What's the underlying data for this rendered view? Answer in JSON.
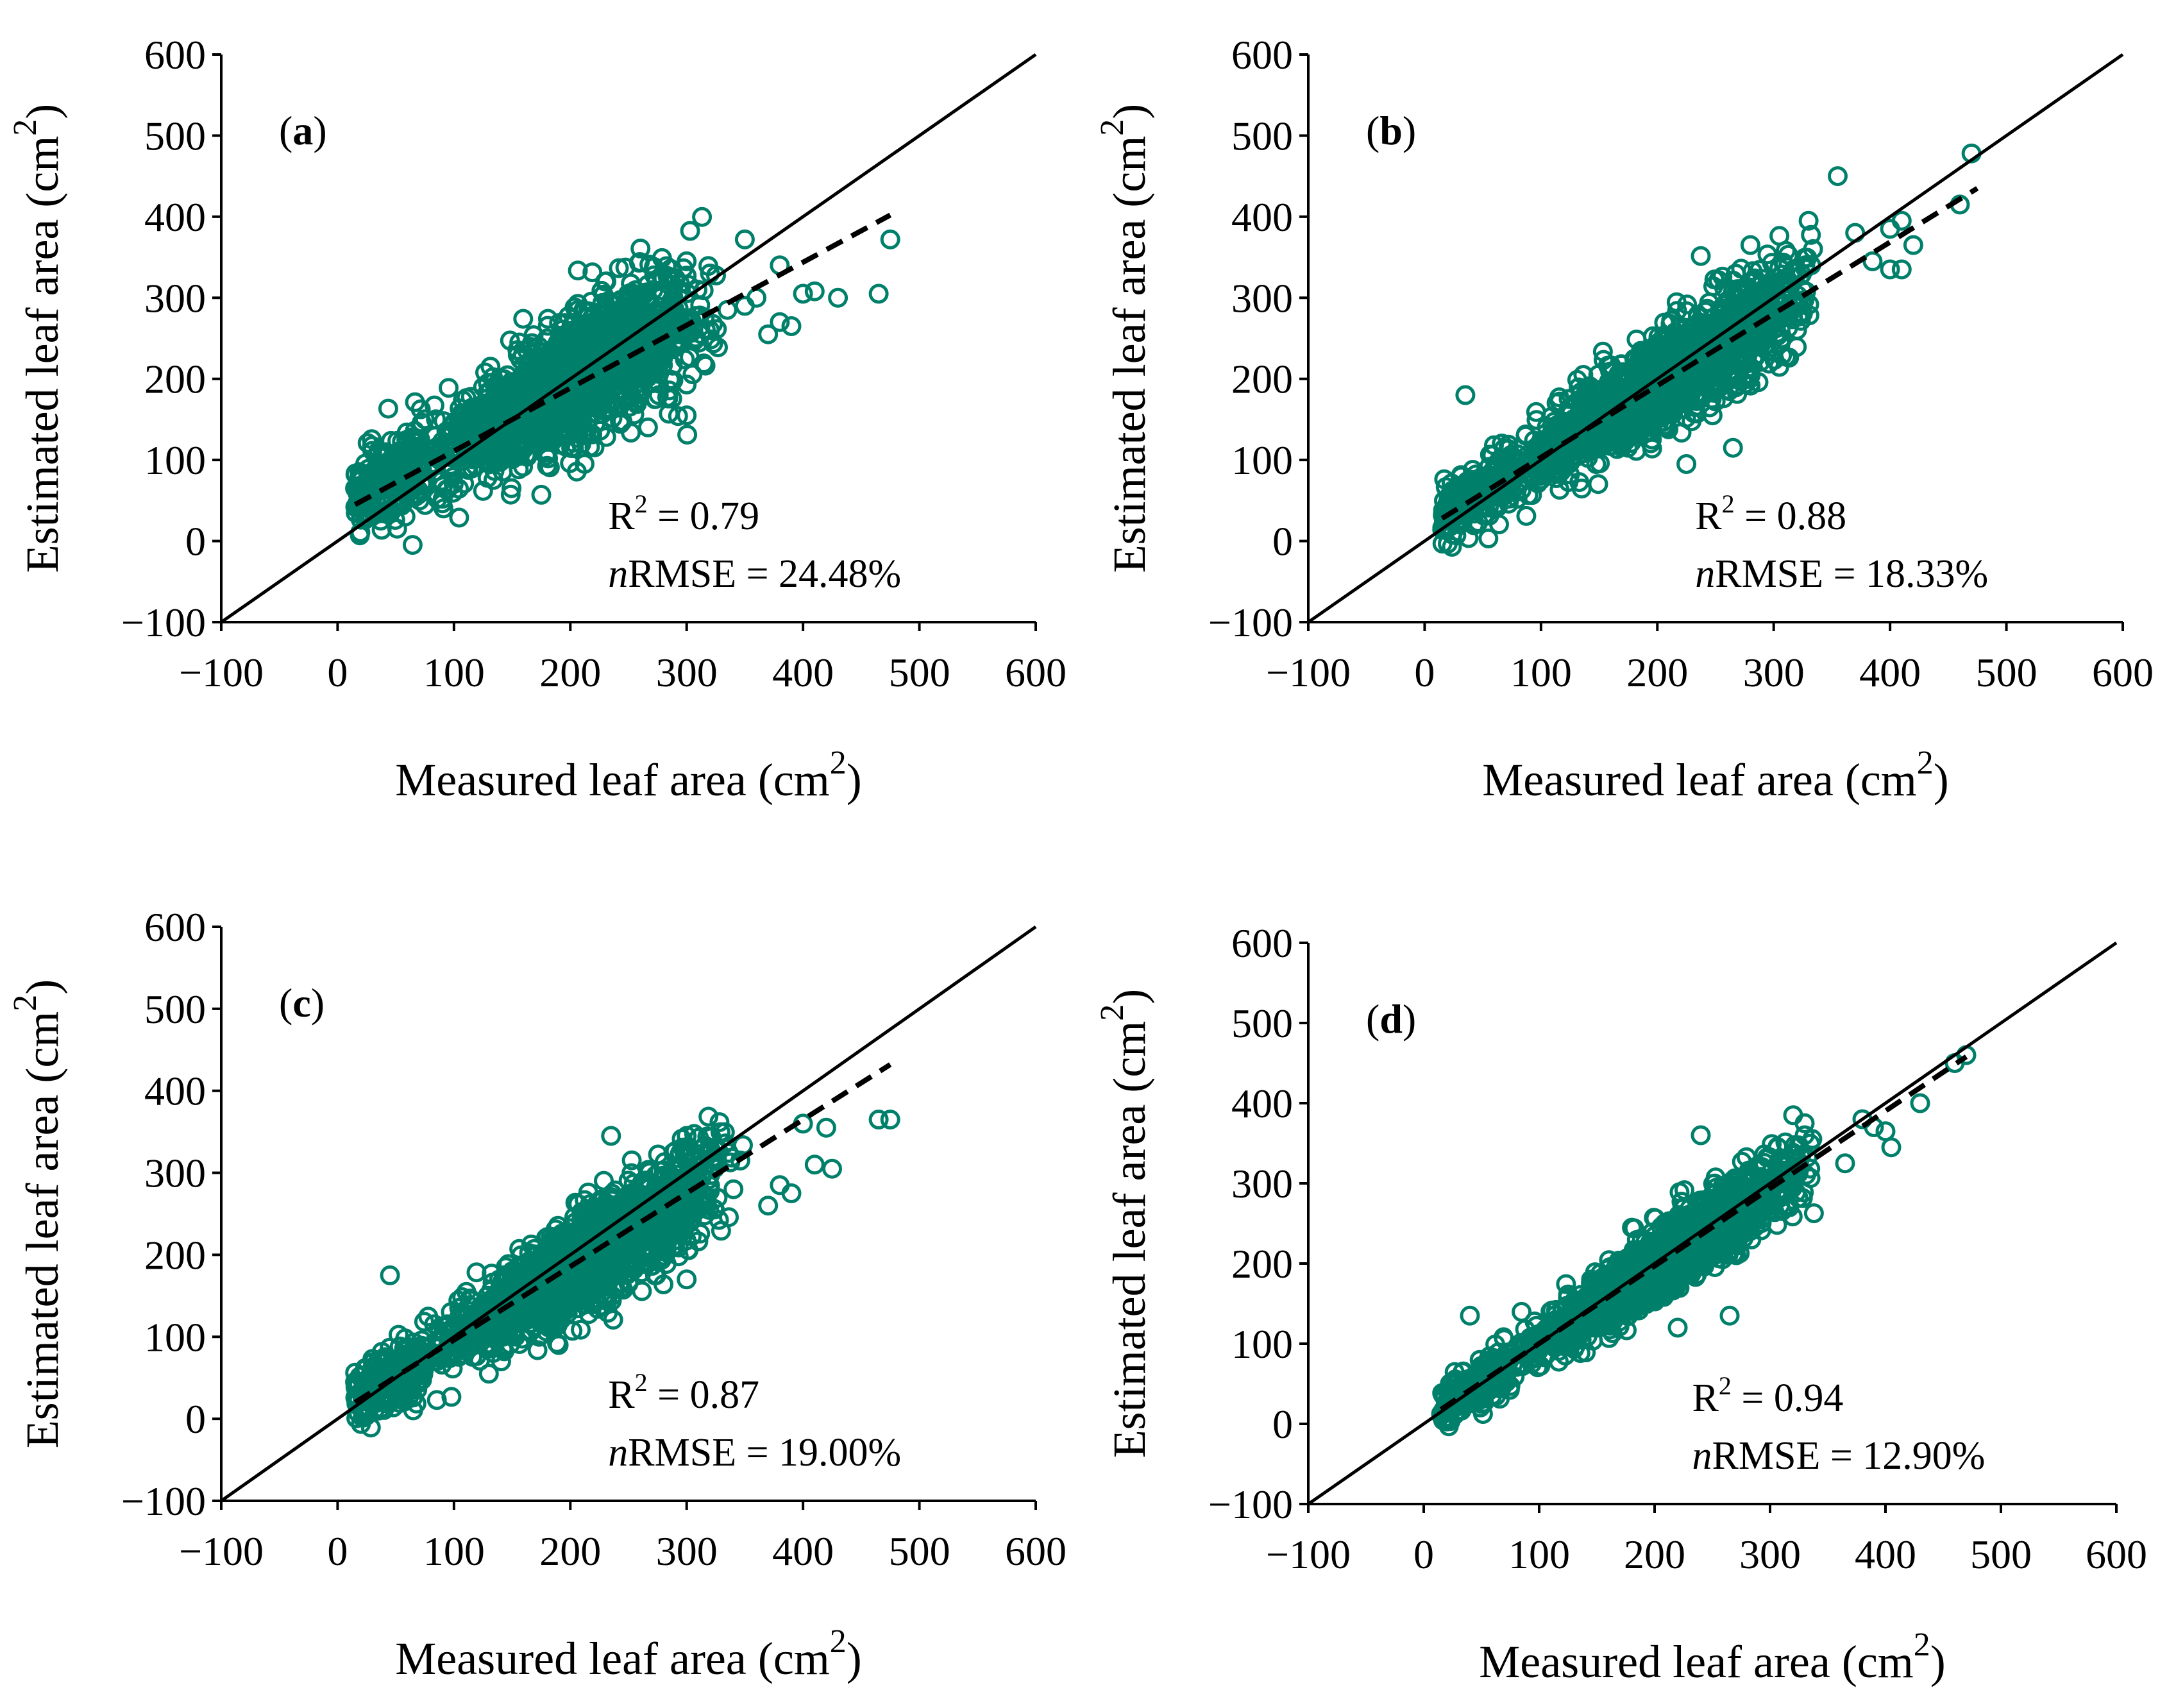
{
  "figure": {
    "colors": {
      "marker": "#00806a",
      "ident_line": "#000000",
      "fit_line": "#000000",
      "background": "#ffffff"
    },
    "xlabel": "Measured leaf area (cm",
    "ylabel": "Estimated leaf area (cm",
    "unit_sup": "2"
  },
  "chart_data": [
    {
      "type": "scatter",
      "panel_label": {
        "open": "(",
        "letter": "a",
        "close": ")"
      },
      "xlabel": "Measured leaf area (cm2)",
      "ylabel": "Estimated leaf area (cm2)",
      "xlim": [
        -100,
        600
      ],
      "ylim": [
        -100,
        600
      ],
      "xticks": [
        "−100",
        "0",
        "100",
        "200",
        "300",
        "400",
        "500",
        "600"
      ],
      "yticks": [
        "−100",
        "0",
        "100",
        "200",
        "300",
        "400",
        "500",
        "600"
      ],
      "identity_line": {
        "x": [
          -100,
          600
        ],
        "y": [
          -100,
          600
        ]
      },
      "fit_line": {
        "x": [
          15,
          475
        ],
        "y": [
          45,
          402
        ]
      },
      "r2_label": "R",
      "r2_sup": "2",
      "r2_value": " = 0.79",
      "nrmse_italic": "n",
      "nrmse_text": "RMSE = 24.48%",
      "cloud": {
        "x_range": [
          15,
          330
        ],
        "slope": 0.78,
        "intercept": 42,
        "spread": 40
      },
      "outliers": [
        [
          15,
          65
        ],
        [
          350,
          372
        ],
        [
          300,
          345
        ],
        [
          320,
          330
        ],
        [
          380,
          340
        ],
        [
          400,
          305
        ],
        [
          410,
          308
        ],
        [
          430,
          300
        ],
        [
          465,
          305
        ],
        [
          475,
          372
        ],
        [
          380,
          270
        ],
        [
          390,
          265
        ],
        [
          370,
          255
        ],
        [
          300,
          155
        ],
        [
          230,
          320
        ],
        [
          350,
          290
        ],
        [
          360,
          300
        ],
        [
          335,
          285
        ]
      ]
    },
    {
      "type": "scatter",
      "panel_label": {
        "open": "(",
        "letter": "b",
        "close": ")"
      },
      "xlabel": "Measured leaf area (cm2)",
      "ylabel": "Estimated leaf area (cm2)",
      "xlim": [
        -100,
        600
      ],
      "ylim": [
        -100,
        600
      ],
      "xticks": [
        "−100",
        "0",
        "100",
        "200",
        "300",
        "400",
        "500",
        "600"
      ],
      "yticks": [
        "−100",
        "0",
        "100",
        "200",
        "300",
        "400",
        "500",
        "600"
      ],
      "identity_line": {
        "x": [
          -100,
          600
        ],
        "y": [
          -100,
          600
        ]
      },
      "fit_line": {
        "x": [
          15,
          475
        ],
        "y": [
          28,
          435
        ]
      },
      "r2_label": "R",
      "r2_sup": "2",
      "r2_value": " = 0.88",
      "nrmse_italic": "n",
      "nrmse_text": "RMSE = 18.33%",
      "cloud": {
        "x_range": [
          15,
          340
        ],
        "slope": 0.88,
        "intercept": 18,
        "spread": 30
      },
      "outliers": [
        [
          35,
          180
        ],
        [
          355,
          450
        ],
        [
          470,
          478
        ],
        [
          460,
          415
        ],
        [
          410,
          395
        ],
        [
          400,
          385
        ],
        [
          420,
          365
        ],
        [
          400,
          335
        ],
        [
          410,
          335
        ],
        [
          330,
          395
        ],
        [
          370,
          380
        ],
        [
          385,
          345
        ],
        [
          265,
          115
        ],
        [
          225,
          95
        ],
        [
          245,
          165
        ],
        [
          280,
          365
        ]
      ]
    },
    {
      "type": "scatter",
      "panel_label": {
        "open": "(",
        "letter": "c",
        "close": ")"
      },
      "xlabel": "Measured leaf area (cm2)",
      "ylabel": "Estimated leaf area (cm2)",
      "xlim": [
        -100,
        600
      ],
      "ylim": [
        -100,
        600
      ],
      "xticks": [
        "−100",
        "0",
        "100",
        "200",
        "300",
        "400",
        "500",
        "600"
      ],
      "yticks": [
        "−100",
        "0",
        "100",
        "200",
        "300",
        "400",
        "500",
        "600"
      ],
      "identity_line": {
        "x": [
          -100,
          600
        ],
        "y": [
          -100,
          600
        ]
      },
      "fit_line": {
        "x": [
          15,
          475
        ],
        "y": [
          20,
          432
        ]
      },
      "r2_label": "R",
      "r2_sup": "2",
      "r2_value": " = 0.87",
      "nrmse_italic": "n",
      "nrmse_text": "RMSE = 19.00%",
      "cloud": {
        "x_range": [
          15,
          350
        ],
        "slope": 0.87,
        "intercept": 10,
        "spread": 30
      },
      "outliers": [
        [
          15,
          45
        ],
        [
          45,
          175
        ],
        [
          235,
          345
        ],
        [
          300,
          345
        ],
        [
          400,
          360
        ],
        [
          420,
          355
        ],
        [
          465,
          365
        ],
        [
          475,
          365
        ],
        [
          380,
          285
        ],
        [
          390,
          275
        ],
        [
          370,
          260
        ],
        [
          410,
          310
        ],
        [
          425,
          305
        ],
        [
          300,
          170
        ],
        [
          250,
          165
        ],
        [
          190,
          90
        ],
        [
          130,
          55
        ]
      ]
    },
    {
      "type": "scatter",
      "panel_label": {
        "open": "(",
        "letter": "d",
        "close": ")"
      },
      "xlabel": "Measured leaf area (cm2)",
      "ylabel": "Estimated leaf area (cm2)",
      "xlim": [
        -100,
        600
      ],
      "ylim": [
        -100,
        600
      ],
      "xticks": [
        "−100",
        "0",
        "100",
        "200",
        "300",
        "400",
        "500",
        "600"
      ],
      "yticks": [
        "−100",
        "0",
        "100",
        "200",
        "300",
        "400",
        "500",
        "600"
      ],
      "identity_line": {
        "x": [
          -100,
          600
        ],
        "y": [
          -100,
          600
        ]
      },
      "fit_line": {
        "x": [
          15,
          470
        ],
        "y": [
          18,
          458
        ]
      },
      "r2_label": "R",
      "r2_sup": "2",
      "r2_value": " = 0.94",
      "nrmse_italic": "n",
      "nrmse_text": "RMSE = 12.90%",
      "cloud": {
        "x_range": [
          15,
          340
        ],
        "slope": 0.95,
        "intercept": 5,
        "spread": 22
      },
      "outliers": [
        [
          40,
          135
        ],
        [
          240,
          360
        ],
        [
          320,
          385
        ],
        [
          330,
          375
        ],
        [
          380,
          380
        ],
        [
          390,
          370
        ],
        [
          400,
          365
        ],
        [
          430,
          400
        ],
        [
          460,
          450
        ],
        [
          470,
          460
        ],
        [
          365,
          325
        ],
        [
          405,
          345
        ],
        [
          265,
          135
        ],
        [
          220,
          120
        ],
        [
          330,
          360
        ]
      ]
    }
  ]
}
